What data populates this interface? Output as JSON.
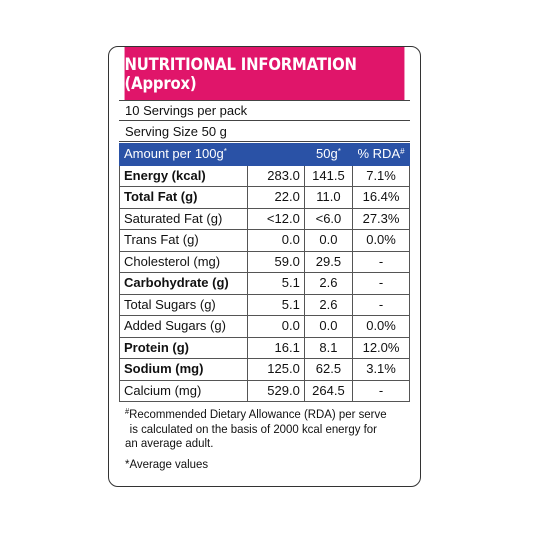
{
  "title": "NUTRITIONAL INFORMATION (Approx)",
  "servings_per_pack": "10 Servings per pack",
  "serving_size": "Serving Size 50 g",
  "columns": {
    "amount": "Amount per 100g",
    "amount_mark": "*",
    "serving": "50g",
    "serving_mark": "*",
    "rda": "% RDA",
    "rda_mark": "#"
  },
  "rows": [
    {
      "name": "Energy (kcal)",
      "per100": "283.0",
      "per50": "141.5",
      "rda": "7.1%"
    },
    {
      "name": "Total Fat (g)",
      "per100": "22.0",
      "per50": "11.0",
      "rda": "16.4%"
    },
    {
      "name": "Saturated Fat (g)",
      "per100": "<12.0",
      "per50": "<6.0",
      "rda": "27.3%"
    },
    {
      "name": "Trans Fat (g)",
      "per100": "0.0",
      "per50": "0.0",
      "rda": "0.0%"
    },
    {
      "name": "Cholesterol (mg)",
      "per100": "59.0",
      "per50": "29.5",
      "rda": "-"
    },
    {
      "name": "Carbohydrate (g)",
      "per100": "5.1",
      "per50": "2.6",
      "rda": "-"
    },
    {
      "name": "Total Sugars (g)",
      "per100": "5.1",
      "per50": "2.6",
      "rda": "-"
    },
    {
      "name": "Added Sugars (g)",
      "per100": "0.0",
      "per50": "0.0",
      "rda": "0.0%"
    },
    {
      "name": "Protein (g)",
      "per100": "16.1",
      "per50": "8.1",
      "rda": "12.0%"
    },
    {
      "name": "Sodium (mg)",
      "per100": "125.0",
      "per50": "62.5",
      "rda": "3.1%"
    },
    {
      "name": "Calcium (mg)",
      "per100": "529.0",
      "per50": "264.5",
      "rda": "-"
    }
  ],
  "footnote": {
    "mark": "#",
    "line1": "Recommended Dietary Allowance (RDA) per serve",
    "line2": "is calculated on the basis of 2000 kcal energy for",
    "line3": "an average adult."
  },
  "average_note": "*Average values",
  "colors": {
    "header_bg": "#e0156a",
    "table_head_bg": "#2a52a6"
  }
}
